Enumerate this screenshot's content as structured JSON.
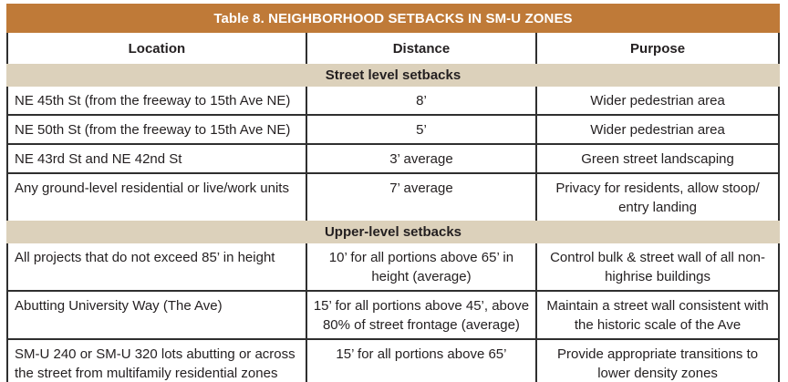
{
  "colors": {
    "title_bg": "#bf7a38",
    "title_text": "#ffffff",
    "section_bg": "#dcd1bb",
    "border": "#2f2f2f",
    "text": "#231f20"
  },
  "table": {
    "title": "Table 8. NEIGHBORHOOD SETBACKS IN SM-U ZONES",
    "columns": [
      "Location",
      "Distance",
      "Purpose"
    ],
    "sections": [
      {
        "header": "Street level setbacks",
        "rows": [
          {
            "location": "NE 45th St (from the freeway to 15th Ave NE)",
            "distance": "8’",
            "purpose": "Wider pedestrian area"
          },
          {
            "location": "NE 50th St (from the freeway to 15th Ave NE)",
            "distance": "5’",
            "purpose": "Wider pedestrian area"
          },
          {
            "location": "NE 43rd St and NE 42nd St",
            "distance": "3’ average",
            "purpose": "Green street landscaping"
          },
          {
            "location": "Any ground-level residential or live/work units",
            "distance": "7’ average",
            "purpose": "Privacy for residents, allow stoop/ entry landing"
          }
        ]
      },
      {
        "header": "Upper-level setbacks",
        "rows": [
          {
            "location": "All projects that do not exceed 85’ in height",
            "distance": "10’ for all portions above 65’ in height (average)",
            "purpose": "Control bulk & street wall of all non-highrise buildings"
          },
          {
            "location": "Abutting University Way (The Ave)",
            "distance": "15’ for all portions above 45’, above 80% of street frontage (average)",
            "purpose": "Maintain a street wall consistent with the historic scale of the Ave"
          },
          {
            "location": "SM-U 240 or SM-U 320 lots abutting or across the street from multifamily residential zones",
            "distance": "15’ for all portions above 65’",
            "purpose": "Provide appropriate transitions to lower density zones"
          }
        ]
      }
    ]
  }
}
